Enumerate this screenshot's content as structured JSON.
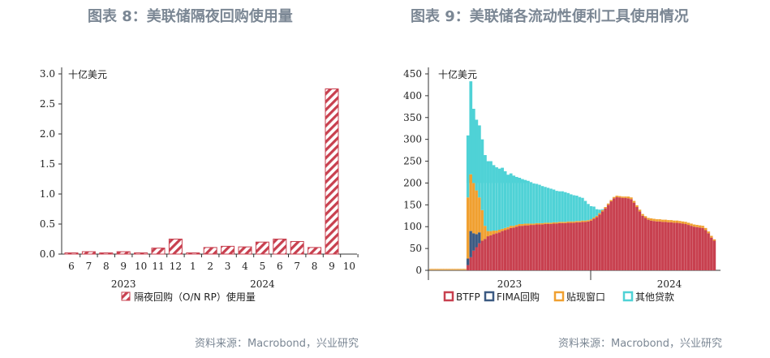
{
  "chart_data": [
    {
      "type": "bar",
      "title": "图表 8：美联储隔夜回购使用量",
      "unit_label": "十亿美元",
      "categories": [
        "6",
        "7",
        "8",
        "9",
        "10",
        "11",
        "12",
        "1",
        "2",
        "3",
        "4",
        "5",
        "6",
        "7",
        "8",
        "9",
        "10"
      ],
      "year_labels": [
        {
          "label": "2023",
          "at_category": "9"
        },
        {
          "label": "2024",
          "at_category": "5"
        }
      ],
      "series": [
        {
          "name": "隔夜回购（O/N RP）使用量",
          "color": "#c8404f",
          "values": [
            0.01,
            0.04,
            0.02,
            0.04,
            0.02,
            0.1,
            0.25,
            0.01,
            0.11,
            0.13,
            0.12,
            0.2,
            0.25,
            0.21,
            0.11,
            2.75,
            null
          ]
        }
      ],
      "yticks": [
        0.0,
        0.5,
        1.0,
        1.5,
        2.0,
        2.5,
        3.0
      ],
      "ylim": [
        0,
        3.0
      ],
      "source": "资料来源：Macrobond，兴业研究"
    },
    {
      "type": "bar",
      "stacked": true,
      "title": "图表 9：美联储各流动性便利工具使用情况",
      "unit_label": "十亿美元",
      "x_year_labels": [
        "2023",
        "2024"
      ],
      "yticks": [
        0,
        50,
        100,
        150,
        200,
        250,
        300,
        350,
        400,
        450
      ],
      "ylim": [
        0,
        450
      ],
      "legend": [
        {
          "name": "BTFP",
          "color": "#c8404f"
        },
        {
          "name": "FIMA回购",
          "color": "#3c5a82"
        },
        {
          "name": "贴现窗口",
          "color": "#f0a030"
        },
        {
          "name": "其他贷款",
          "color": "#4fd2d6"
        }
      ],
      "series": [
        {
          "name": "BTFP",
          "values": [
            0,
            0,
            0,
            0,
            0,
            0,
            0,
            0,
            0,
            0,
            0,
            0,
            0,
            12,
            30,
            45,
            53,
            62,
            68,
            72,
            78,
            80,
            83,
            85,
            87,
            90,
            92,
            94,
            97,
            98,
            100,
            102,
            102,
            103,
            103,
            104,
            104,
            105,
            105,
            105,
            106,
            106,
            106,
            107,
            107,
            108,
            108,
            108,
            109,
            109,
            109,
            110,
            110,
            111,
            111,
            112,
            114,
            118,
            122,
            128,
            135,
            142,
            150,
            158,
            165,
            168,
            167,
            166,
            166,
            165,
            163,
            155,
            145,
            135,
            125,
            120,
            116,
            114,
            113,
            112,
            112,
            111,
            111,
            110,
            110,
            109,
            109,
            108,
            107,
            106,
            104,
            102,
            100,
            99,
            98,
            97,
            92,
            85,
            75,
            68
          ]
        },
        {
          "name": "FIMA回购",
          "values": [
            0,
            0,
            0,
            0,
            0,
            0,
            0,
            0,
            0,
            0,
            0,
            0,
            0,
            15,
            60,
            40,
            30,
            25,
            0,
            0,
            0,
            0,
            0,
            0,
            0,
            0,
            0,
            0,
            0,
            0,
            0,
            0,
            0,
            0,
            0,
            0,
            0,
            0,
            0,
            0,
            0,
            0,
            0,
            0,
            0,
            0,
            0,
            0,
            0,
            0,
            0,
            0,
            0,
            0,
            0,
            0,
            0,
            0,
            0,
            0,
            0,
            0,
            0,
            0,
            0,
            0,
            0,
            0,
            0,
            0,
            0,
            0,
            0,
            0,
            0,
            0,
            0,
            0,
            0,
            0,
            0,
            0,
            0,
            0,
            0,
            0,
            0,
            0,
            0,
            0,
            0,
            0,
            0,
            0,
            0,
            0,
            0,
            0,
            0,
            0
          ]
        },
        {
          "name": "贴现窗口",
          "values": [
            0,
            0,
            0,
            0,
            0,
            0,
            0,
            0,
            0,
            0,
            0,
            0,
            0,
            140,
            130,
            115,
            100,
            80,
            70,
            30,
            12,
            10,
            8,
            6,
            6,
            5,
            5,
            5,
            5,
            4,
            4,
            4,
            4,
            4,
            4,
            3,
            3,
            3,
            3,
            3,
            3,
            3,
            3,
            3,
            3,
            3,
            3,
            3,
            3,
            3,
            3,
            3,
            3,
            3,
            3,
            3,
            3,
            3,
            3,
            3,
            3,
            3,
            3,
            3,
            3,
            3,
            3,
            3,
            3,
            4,
            4,
            4,
            4,
            4,
            4,
            4,
            4,
            5,
            5,
            5,
            5,
            5,
            5,
            5,
            5,
            5,
            5,
            5,
            5,
            5,
            5,
            5,
            5,
            5,
            5,
            5,
            5,
            4,
            4,
            3
          ]
        },
        {
          "name": "其他贷款",
          "values": [
            0,
            0,
            0,
            0,
            0,
            0,
            0,
            0,
            0,
            0,
            0,
            0,
            0,
            142,
            213,
            170,
            162,
            165,
            162,
            162,
            160,
            160,
            150,
            145,
            140,
            140,
            130,
            120,
            120,
            115,
            110,
            106,
            103,
            100,
            98,
            95,
            92,
            90,
            88,
            85,
            82,
            80,
            78,
            75,
            72,
            70,
            70,
            68,
            65,
            62,
            60,
            58,
            55,
            52,
            45,
            37,
            30,
            25,
            15,
            8,
            2,
            0,
            0,
            0,
            0,
            0,
            0,
            0,
            0,
            0,
            0,
            0,
            0,
            0,
            0,
            0,
            0,
            0,
            0,
            0,
            0,
            0,
            0,
            0,
            0,
            0,
            0,
            0,
            0,
            0,
            0,
            0,
            0,
            0,
            0,
            0,
            0,
            0,
            0,
            0
          ]
        }
      ],
      "source": "资料来源：Macrobond，兴业研究"
    }
  ]
}
